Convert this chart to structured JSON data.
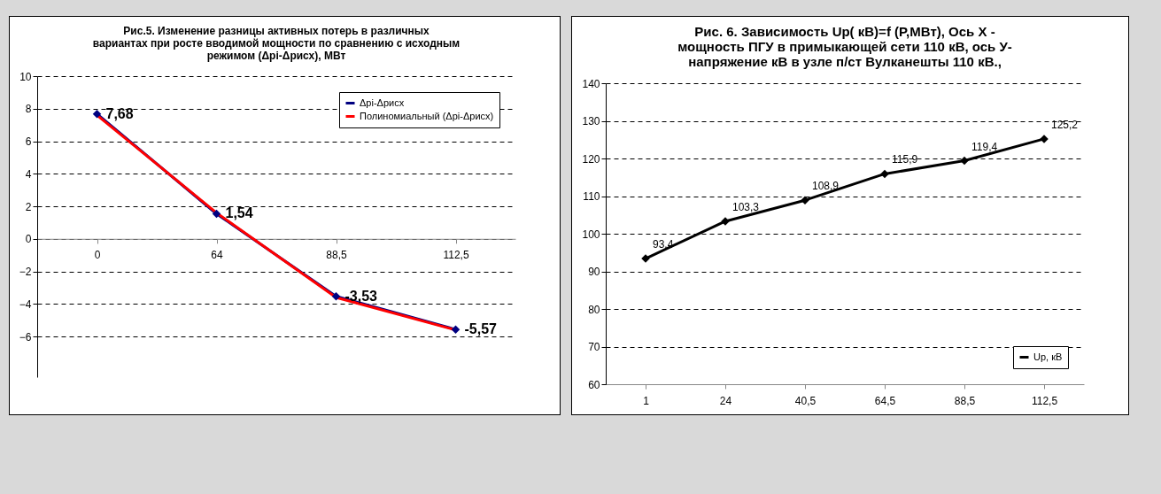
{
  "chart_data": [
    {
      "type": "line",
      "title": "Рис.5.  Изменение разницы активных потерь в различных вариантах при росте вводимой мощности  по сравнению с исходным   режимом   (Δpi-Δpисх), МВт",
      "categories": [
        "0",
        "64",
        "88,5",
        "112,5"
      ],
      "series": [
        {
          "name": "Δpi-Δpисх",
          "color": "#000080",
          "values": [
            7.68,
            1.54,
            -3.53,
            -5.57
          ],
          "value_labels": [
            "7,68",
            "1,54",
            "-3,53",
            "-5,57"
          ]
        },
        {
          "name": "Полиномиальный (Δpi-Δpисх)",
          "color": "#ff0000",
          "values": [
            7.6,
            1.6,
            -3.6,
            -5.6
          ],
          "marker": "none"
        }
      ],
      "ylim": [
        -8.5,
        10
      ],
      "yticks": [
        -6,
        -4,
        -2,
        0,
        2,
        4,
        6,
        8,
        10
      ],
      "grid": "y",
      "legend": "top right",
      "marker": "diamond"
    },
    {
      "type": "line",
      "title": "Рис. 6.   Зависимость Up( кВ)=f (P,МВт), Ось X - мощность ПГУ в примыкающей сети 110 кВ,  ось У- напряжение кВ в узле п/ст Вулканешты 110 кВ.,",
      "categories": [
        "1",
        "24",
        "40,5",
        "64,5",
        "88,5",
        "112,5"
      ],
      "series": [
        {
          "name": "Up, кВ",
          "color": "#000000",
          "values": [
            93.4,
            103.3,
            108.9,
            115.9,
            119.4,
            125.2
          ],
          "value_labels": [
            "93,4",
            "103,3",
            "108,9",
            "115,9",
            "119,4",
            "125,2"
          ]
        }
      ],
      "ylim": [
        60,
        140
      ],
      "yticks": [
        60,
        70,
        80,
        90,
        100,
        110,
        120,
        130,
        140
      ],
      "grid": "y",
      "legend": "bottom right",
      "marker": "diamond"
    }
  ]
}
